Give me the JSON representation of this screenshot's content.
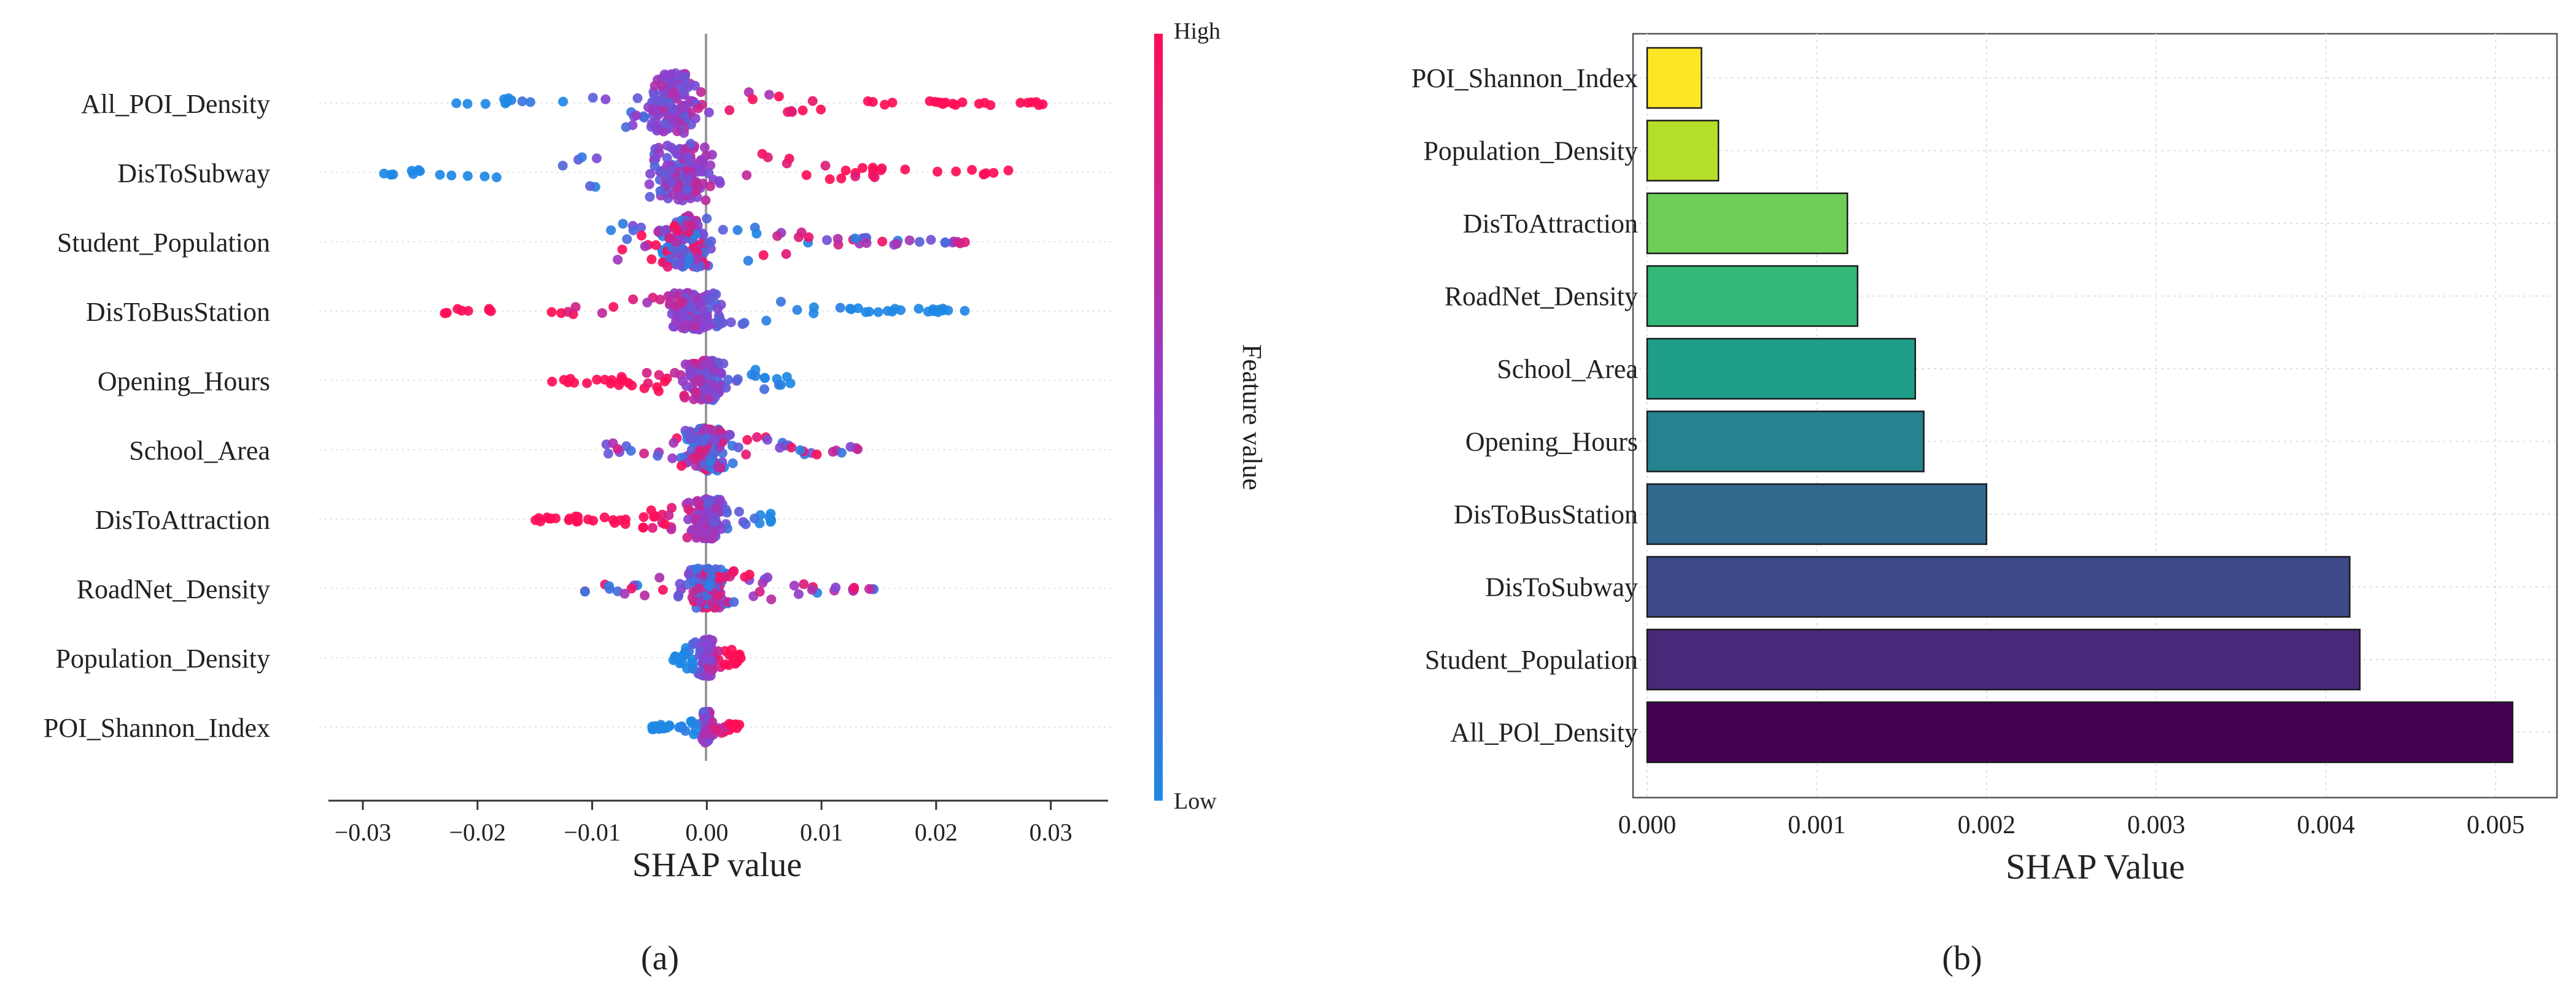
{
  "panels": {
    "a_label": "(a)",
    "b_label": "(b)"
  },
  "chart_data": [
    {
      "type": "scatter",
      "subtype": "shap-beeswarm",
      "xlabel": "SHAP value",
      "xlim": [
        -0.033,
        0.035
      ],
      "xticks": [
        -0.03,
        -0.02,
        -0.01,
        0.0,
        0.01,
        0.02,
        0.03
      ],
      "xtick_labels": [
        "−0.03",
        "−0.02",
        "−0.01",
        "0.00",
        "0.01",
        "0.02",
        "0.03"
      ],
      "colorbar": {
        "label": "Feature value",
        "high": "High",
        "low": "Low",
        "low_color": "#1e88e5",
        "high_color": "#ff0d57"
      },
      "features": [
        {
          "name": "All_POI_Density",
          "min": -0.022,
          "max": 0.032,
          "core": -0.003,
          "spread": 0.0035,
          "thickness": 0.95,
          "high_side": 1
        },
        {
          "name": "DisToSubway",
          "min": -0.03,
          "max": 0.027,
          "core": -0.002,
          "spread": 0.004,
          "thickness": 0.9,
          "high_side": 1
        },
        {
          "name": "Student_Population",
          "min": -0.011,
          "max": 0.023,
          "core": -0.002,
          "spread": 0.0035,
          "thickness": 0.8,
          "high_side": 0
        },
        {
          "name": "DisToBusStation",
          "min": -0.023,
          "max": 0.023,
          "core": -0.001,
          "spread": 0.003,
          "thickness": 0.55,
          "high_side": -1
        },
        {
          "name": "Opening_Hours",
          "min": -0.014,
          "max": 0.008,
          "core": 0.0,
          "spread": 0.002,
          "thickness": 0.6,
          "high_side": -1
        },
        {
          "name": "School_Area",
          "min": -0.009,
          "max": 0.014,
          "core": 0.0,
          "spread": 0.0025,
          "thickness": 0.65,
          "high_side": 0
        },
        {
          "name": "DisToAttraction",
          "min": -0.015,
          "max": 0.006,
          "core": 0.0,
          "spread": 0.002,
          "thickness": 0.6,
          "high_side": -1
        },
        {
          "name": "RoadNet_Density",
          "min": -0.011,
          "max": 0.015,
          "core": 0.0,
          "spread": 0.0025,
          "thickness": 0.6,
          "high_side": 0
        },
        {
          "name": "Population_Density",
          "min": -0.003,
          "max": 0.003,
          "core": 0.0,
          "spread": 0.0008,
          "thickness": 0.55,
          "high_side": 1
        },
        {
          "name": "POI_Shannon_Index",
          "min": -0.005,
          "max": 0.003,
          "core": 0.0,
          "spread": 0.0005,
          "thickness": 0.45,
          "high_side": 1
        }
      ]
    },
    {
      "type": "bar",
      "orientation": "horizontal",
      "xlabel": "SHAP Value",
      "xlim": [
        0,
        0.0053
      ],
      "xticks": [
        0.0,
        0.001,
        0.002,
        0.003,
        0.004,
        0.005
      ],
      "xtick_labels": [
        "0.000",
        "0.001",
        "0.002",
        "0.003",
        "0.004",
        "0.005"
      ],
      "categories": [
        "POI_Shannon_Index",
        "Population_Density",
        "DisToAttraction",
        "RoadNet_Density",
        "School_Area",
        "Opening_Hours",
        "DisToBusStation",
        "DisToSubway",
        "Student_Population",
        "All_POl_Density"
      ],
      "values": [
        0.00032,
        0.00042,
        0.00118,
        0.00124,
        0.00158,
        0.00163,
        0.002,
        0.00414,
        0.0042,
        0.0051
      ],
      "colors": [
        "#fde725",
        "#b5de2b",
        "#6ece58",
        "#35b779",
        "#1f9e89",
        "#26828e",
        "#31688e",
        "#3e4989",
        "#482878",
        "#440154"
      ]
    }
  ]
}
